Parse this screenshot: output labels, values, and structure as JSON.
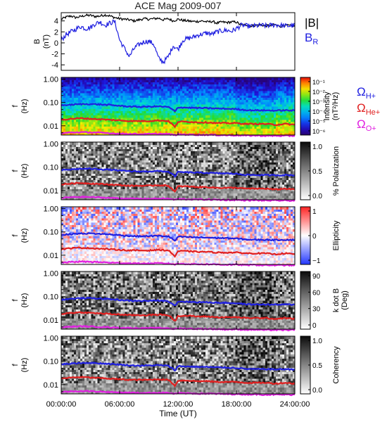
{
  "chart_data": {
    "type": "line",
    "title": "ACE Mag 2009-007",
    "xlabel": "Time (UT)",
    "x_ticks": [
      "00:00:00",
      "06:00:00",
      "12:00:00",
      "18:00:00",
      "24:00:00"
    ],
    "xlim": [
      0,
      24
    ],
    "panels": [
      {
        "id": "field",
        "type": "line",
        "ylabel": [
          "B",
          "(nT)"
        ],
        "ylim": [
          -5,
          5.5
        ],
        "yticks": [
          4,
          2,
          0,
          -2,
          -4
        ],
        "series": [
          {
            "name": "|B|",
            "color": "#000000",
            "hours": [
              0,
              0.5,
              1,
              1.5,
              2,
              2.5,
              3,
              3.5,
              4,
              4.5,
              5,
              5.5,
              6,
              6.5,
              7,
              7.5,
              8,
              8.5,
              9,
              9.5,
              10,
              10.5,
              11,
              11.5,
              12,
              12.5,
              13,
              13.5,
              14,
              14.5,
              15,
              15.5,
              16,
              16.5,
              17,
              17.5,
              18,
              18.5,
              19,
              19.5,
              20,
              20.5,
              21,
              21.5,
              22,
              22.5,
              23,
              23.5,
              24
            ],
            "values": [
              4.3,
              4.7,
              4.9,
              4.6,
              4.8,
              5.0,
              5.0,
              4.8,
              4.9,
              5.1,
              4.9,
              4.6,
              4.4,
              4.3,
              4.2,
              4.0,
              4.2,
              4.4,
              4.3,
              4.4,
              4.5,
              4.2,
              4.4,
              4.0,
              4.3,
              4.1,
              4.0,
              3.9,
              3.9,
              4.0,
              3.8,
              3.9,
              3.6,
              3.8,
              3.7,
              3.8,
              3.8,
              3.2,
              3.3,
              3.1,
              3.2,
              3.3,
              3.1,
              3.2,
              3.3,
              3.0,
              3.2,
              3.1,
              3.1
            ]
          },
          {
            "name": "B",
            "subscript": "R",
            "color": "#1f1fe0",
            "hours": [
              0,
              0.5,
              1,
              1.5,
              2,
              2.5,
              3,
              3.5,
              4,
              4.5,
              5,
              5.5,
              6,
              6.5,
              7,
              7.5,
              8,
              8.5,
              9,
              9.5,
              10,
              10.5,
              11,
              11.5,
              12,
              12.5,
              13,
              13.5,
              14,
              14.5,
              15,
              15.5,
              16,
              16.5,
              17,
              17.5,
              18,
              18.5,
              19,
              19.5,
              20,
              20.5,
              21,
              21.5,
              22,
              22.5,
              23,
              23.5,
              24
            ],
            "values": [
              0.5,
              1.5,
              2.0,
              2.5,
              3.0,
              2.6,
              2.8,
              3.5,
              3.8,
              3.2,
              3.6,
              3.9,
              0.5,
              -1.0,
              -2.5,
              -1.0,
              -0.3,
              0.2,
              0.3,
              -0.2,
              -2.8,
              -3.5,
              -2.5,
              -0.5,
              -1.2,
              0.5,
              0.8,
              1.0,
              1.4,
              1.6,
              1.8,
              1.6,
              2.0,
              2.2,
              2.3,
              2.1,
              2.6,
              3.2,
              3.1,
              3.0,
              3.1,
              3.2,
              3.1,
              3.2,
              3.3,
              3.2,
              3.1,
              3.1,
              3.2
            ]
          }
        ]
      },
      {
        "id": "intensity",
        "type": "heatmap",
        "ylabel": [
          "f",
          "(Hz)"
        ],
        "yscale": "log",
        "ylim": [
          0.004,
          1.2
        ],
        "yticks": [
          "1.00",
          "0.10",
          "0.01"
        ],
        "colorbar": {
          "label": [
            "Intensity",
            "(nT²/Hz)"
          ],
          "ticks": [
            "10⁻¹",
            "10⁻²",
            "10⁻³",
            "10⁻⁴",
            "10⁻⁵",
            "10⁻⁶"
          ],
          "colormap": "rainbow"
        },
        "legend": [
          {
            "symbol": "Ω",
            "sub": "H+",
            "color": "#2020e0"
          },
          {
            "symbol": "Ω",
            "sub": "He+",
            "color": "#e02020"
          },
          {
            "symbol": "Ω",
            "sub": "O+",
            "color": "#e020e0"
          }
        ]
      },
      {
        "id": "polarization",
        "type": "heatmap",
        "ylabel": [
          "f",
          "(Hz)"
        ],
        "yscale": "log",
        "yticks": [
          "1.00",
          "0.10",
          "0.01"
        ],
        "colorbar": {
          "label": [
            "% Polarization"
          ],
          "ticks": [
            "1.0",
            "0.5",
            "0.0"
          ],
          "colormap": "gray"
        }
      },
      {
        "id": "ellipticity",
        "type": "heatmap",
        "ylabel": [
          "f",
          "(Hz)"
        ],
        "yscale": "log",
        "yticks": [
          "1.00",
          "0.10",
          "0.01"
        ],
        "colorbar": {
          "label": [
            "Ellipticity"
          ],
          "ticks": [
            "1",
            "0",
            "−1"
          ],
          "colormap": "bwr"
        }
      },
      {
        "id": "kdotb",
        "type": "heatmap",
        "ylabel": [
          "f",
          "(Hz)"
        ],
        "yscale": "log",
        "yticks": [
          "1.00",
          "0.10",
          "0.01"
        ],
        "colorbar": {
          "label": [
            "k dot B",
            "(Deg)"
          ],
          "ticks": [
            "90",
            "60",
            "30",
            "0"
          ],
          "colormap": "gray"
        }
      },
      {
        "id": "coherency",
        "type": "heatmap",
        "ylabel": [
          "f",
          "(Hz)"
        ],
        "yscale": "log",
        "yticks": [
          "1.00",
          "0.10",
          "0.01"
        ],
        "colorbar": {
          "label": [
            "Coherency"
          ],
          "ticks": [
            "1.0",
            "0.5",
            "0.0"
          ],
          "colormap": "gray"
        }
      }
    ],
    "gyrofrequency_lines": {
      "hours": [
        0,
        1,
        2,
        3,
        4,
        5,
        6,
        7,
        8,
        9,
        10,
        11,
        11.7,
        12,
        13,
        14,
        15,
        16,
        17,
        18,
        19,
        20,
        21,
        22,
        23,
        24
      ],
      "H+": [
        0.075,
        0.08,
        0.085,
        0.086,
        0.082,
        0.078,
        0.072,
        0.067,
        0.065,
        0.066,
        0.068,
        0.064,
        0.04,
        0.062,
        0.06,
        0.058,
        0.057,
        0.055,
        0.054,
        0.052,
        0.047,
        0.046,
        0.046,
        0.045,
        0.046,
        0.045
      ],
      "He+": [
        0.018,
        0.02,
        0.021,
        0.02,
        0.019,
        0.018,
        0.017,
        0.016,
        0.016,
        0.016,
        0.017,
        0.016,
        0.0085,
        0.015,
        0.015,
        0.014,
        0.014,
        0.013,
        0.013,
        0.013,
        0.012,
        0.012,
        0.012,
        0.011,
        0.012,
        0.011
      ],
      "O+": [
        0.0048,
        0.0051,
        0.0053,
        0.0052,
        0.005,
        0.0048,
        0.0046,
        0.0045,
        0.0044,
        0.0044,
        0.0045,
        0.0044,
        0.004,
        0.0043,
        0.0042,
        0.0041,
        0.0041,
        0.004,
        0.0039,
        0.0039,
        0.0038,
        0.0038,
        0.0037,
        0.0037,
        0.0037,
        0.0037
      ]
    }
  }
}
